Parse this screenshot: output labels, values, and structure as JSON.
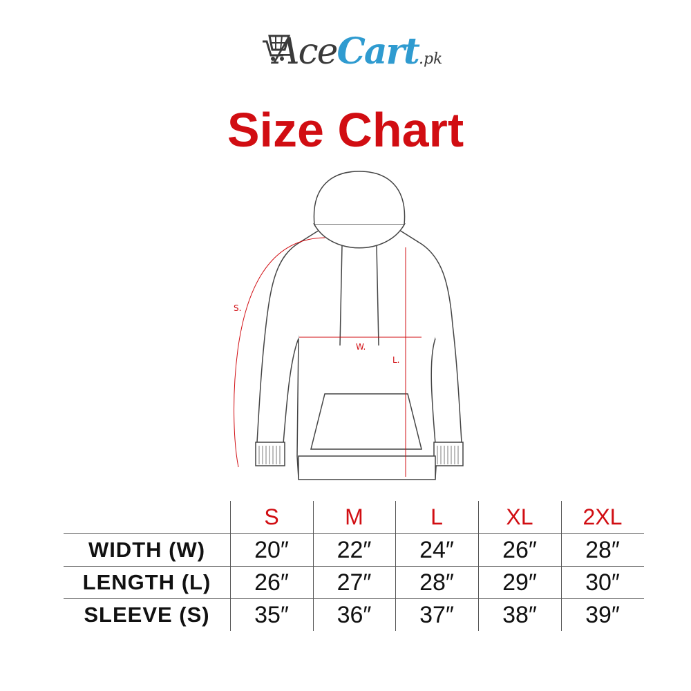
{
  "logo": {
    "part1": "Ace",
    "part2": "Cart",
    "suffix": ".pk",
    "icon": "shopping-cart-icon",
    "colors": {
      "ace": "#3a3a3a",
      "cart": "#2f9bd0"
    }
  },
  "title": "Size Chart",
  "diagram": {
    "labels": {
      "sleeve": "S.",
      "width": "W.",
      "length": "L."
    }
  },
  "table": {
    "sizes": [
      "S",
      "M",
      "L",
      "XL",
      "2XL"
    ],
    "rows": [
      {
        "label": "WIDTH (W)",
        "values": [
          "20″",
          "22″",
          "24″",
          "26″",
          "28″"
        ]
      },
      {
        "label": "LENGTH (L)",
        "values": [
          "26″",
          "27″",
          "28″",
          "29″",
          "30″"
        ]
      },
      {
        "label": "SLEEVE (S)",
        "values": [
          "35″",
          "36″",
          "37″",
          "38″",
          "39″"
        ]
      }
    ]
  },
  "colors": {
    "accent": "#d10d12",
    "text": "#111111"
  }
}
